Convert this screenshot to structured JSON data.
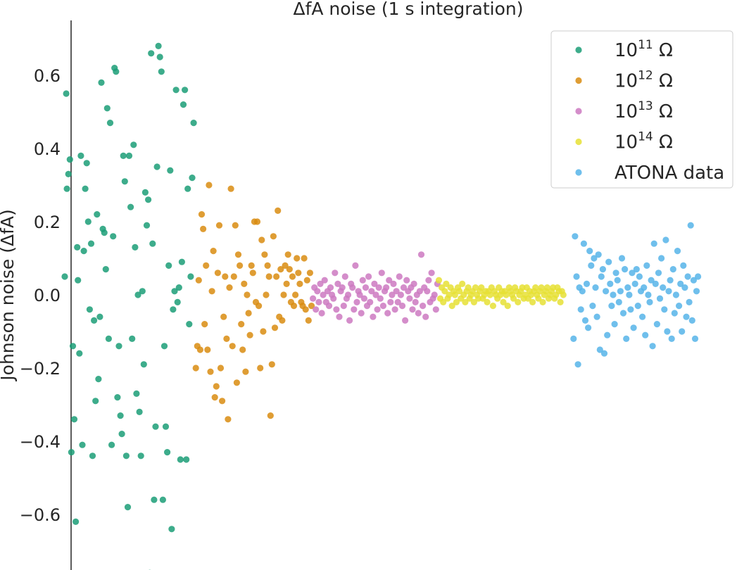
{
  "chart_data": {
    "type": "scatter",
    "title": "ΔfA noise (1 s integration)",
    "xlabel": "",
    "ylabel": "Johnson noise (ΔfA)",
    "ylim": [
      -0.75,
      0.75
    ],
    "yticks": [
      -0.6,
      -0.4,
      -0.2,
      0.0,
      0.2,
      0.4,
      0.6
    ],
    "ytick_labels": [
      "−0.6",
      "−0.4",
      "−0.2",
      "0.0",
      "0.2",
      "0.4",
      "0.6"
    ],
    "grid": false,
    "legend_position": "top-right",
    "series": [
      {
        "name": "10^11 Ω",
        "label_base": "10",
        "label_exp": "11",
        "label_unit": " Ω",
        "color": "#1b9e77",
        "x": [
          0.13,
          0.15,
          0.16,
          0.18,
          0.2,
          0.22,
          0.24,
          0.26,
          0.28,
          0.3,
          0.31,
          0.33,
          0.35,
          0.37,
          0.39,
          0.41,
          0.43,
          0.45,
          0.47,
          0.49,
          0.51,
          0.53,
          0.55,
          0.57,
          0.59,
          0.61,
          0.63,
          0.65,
          0.67,
          0.69,
          0.71,
          0.73,
          0.75,
          0.77,
          0.79,
          0.81,
          0.83,
          0.85,
          0.87,
          0.89,
          0.91,
          0.93,
          0.95,
          0.97,
          0.99,
          1.01,
          1.03,
          1.05,
          1.07,
          1.09,
          1.11,
          1.13,
          1.15,
          1.17,
          1.19,
          1.21,
          1.23,
          1.25,
          1.27,
          1.29,
          1.31,
          1.33,
          1.35,
          1.37,
          1.39,
          1.41,
          1.43,
          1.45,
          1.47,
          1.49,
          1.51,
          1.53,
          1.55,
          1.57,
          1.59,
          1.61,
          1.63,
          1.65,
          1.67,
          1.69,
          1.71,
          1.73,
          1.75,
          1.77,
          1.79,
          1.81,
          1.83,
          1.85,
          1.87,
          1.89
        ],
        "y": [
          0.05,
          0.55,
          0.29,
          0.33,
          0.37,
          -0.43,
          -0.14,
          -0.34,
          -0.62,
          0.13,
          0.04,
          -0.16,
          0.38,
          -0.41,
          0.12,
          0.29,
          0.36,
          0.2,
          -0.04,
          0.14,
          -0.44,
          -0.07,
          -0.29,
          0.22,
          -0.23,
          -0.06,
          0.58,
          0.18,
          0.17,
          0.07,
          0.51,
          -0.12,
          0.47,
          -0.41,
          0.16,
          0.62,
          0.61,
          -0.28,
          -0.14,
          -0.33,
          -0.38,
          0.38,
          0.31,
          -0.44,
          -0.58,
          0.38,
          0.24,
          -0.12,
          0.41,
          0.13,
          -0.27,
          0.0,
          -0.32,
          -0.44,
          0.01,
          -0.19,
          0.28,
          0.19,
          0.26,
          -0.76,
          0.66,
          0.14,
          -0.56,
          -0.36,
          0.35,
          0.68,
          0.65,
          0.61,
          -0.56,
          -0.14,
          -0.36,
          -0.43,
          0.08,
          0.34,
          -0.64,
          -0.04,
          0.01,
          0.56,
          -0.02,
          0.02,
          -0.45,
          0.09,
          0.52,
          0.56,
          -0.45,
          0.29,
          -0.08,
          0.05,
          0.32,
          0.47
        ]
      },
      {
        "name": "10^12 Ω",
        "label_base": "10",
        "label_exp": "12",
        "label_unit": " Ω",
        "color": "#d98c10",
        "x": [
          1.92,
          1.94,
          1.96,
          1.98,
          2.0,
          2.02,
          2.04,
          2.06,
          2.08,
          2.1,
          2.12,
          2.14,
          2.16,
          2.18,
          2.2,
          2.22,
          2.24,
          2.26,
          2.28,
          2.3,
          2.32,
          2.34,
          2.36,
          2.38,
          2.4,
          2.42,
          2.44,
          2.46,
          2.48,
          2.5,
          2.52,
          2.54,
          2.56,
          2.58,
          2.6,
          2.62,
          2.64,
          2.66,
          2.68,
          2.7,
          2.72,
          2.74,
          2.76,
          2.78,
          2.8,
          2.82,
          2.84,
          2.86,
          2.88,
          2.9,
          2.92,
          2.94,
          2.96,
          2.98,
          3.0,
          3.02,
          3.04,
          3.06,
          3.08,
          3.1,
          3.12,
          3.14,
          3.16,
          3.18,
          3.2,
          3.22,
          3.24,
          3.26,
          3.28,
          3.3,
          3.32,
          3.34,
          3.36,
          3.38,
          3.4,
          3.42,
          3.44,
          3.46,
          3.48,
          3.5
        ],
        "y": [
          -0.2,
          -0.14,
          0.04,
          -0.15,
          0.22,
          0.18,
          -0.08,
          0.08,
          -0.15,
          0.3,
          -0.21,
          0.01,
          0.12,
          -0.28,
          -0.25,
          0.06,
          0.19,
          -0.2,
          -0.29,
          -0.06,
          0.05,
          -0.12,
          -0.34,
          0.02,
          0.29,
          -0.14,
          0.05,
          0.19,
          -0.24,
          0.11,
          0.08,
          -0.08,
          -0.15,
          0.03,
          -0.21,
          0.0,
          -0.05,
          -0.11,
          0.08,
          0.06,
          0.2,
          -0.02,
          0.2,
          -0.03,
          -0.2,
          0.15,
          -0.1,
          0.11,
          0.0,
          0.08,
          0.05,
          -0.33,
          -0.19,
          0.16,
          -0.09,
          0.05,
          0.23,
          -0.06,
          0.07,
          -0.07,
          0.0,
          0.08,
          0.03,
          0.11,
          0.07,
          -0.02,
          0.05,
          -0.03,
          0.0,
          0.1,
          0.06,
          0.03,
          -0.02,
          -0.03,
          0.1,
          -0.04,
          0.04,
          -0.07,
          0.06,
          -0.03
        ]
      },
      {
        "name": "10^13 Ω",
        "label_base": "10",
        "label_exp": "13",
        "label_unit": " Ω",
        "color": "#cc79c1",
        "x": [
          3.52,
          3.54,
          3.56,
          3.58,
          3.6,
          3.62,
          3.64,
          3.66,
          3.68,
          3.7,
          3.72,
          3.74,
          3.76,
          3.78,
          3.8,
          3.82,
          3.84,
          3.86,
          3.88,
          3.9,
          3.92,
          3.94,
          3.96,
          3.98,
          4.0,
          4.02,
          4.04,
          4.06,
          4.08,
          4.1,
          4.12,
          4.14,
          4.16,
          4.18,
          4.2,
          4.22,
          4.24,
          4.26,
          4.28,
          4.3,
          4.32,
          4.34,
          4.36,
          4.38,
          4.4,
          4.42,
          4.44,
          4.46,
          4.48,
          4.5,
          4.52,
          4.54,
          4.56,
          4.58,
          4.6,
          4.62,
          4.64,
          4.66,
          4.68,
          4.7,
          4.72,
          4.74,
          4.76,
          4.78,
          4.8,
          4.82,
          4.84,
          4.86,
          4.88,
          4.9,
          4.92,
          4.94,
          4.96,
          4.98,
          5.0,
          5.02,
          5.04,
          5.06,
          5.08,
          5.1,
          5.12,
          5.14,
          5.16,
          5.18,
          5.2,
          5.22
        ],
        "y": [
          -0.01,
          0.02,
          -0.04,
          0.01,
          -0.02,
          0.03,
          -0.05,
          0.0,
          0.04,
          -0.02,
          0.01,
          -0.03,
          0.02,
          0.0,
          -0.01,
          0.06,
          -0.04,
          0.03,
          -0.06,
          0.01,
          0.02,
          -0.03,
          0.05,
          -0.01,
          0.0,
          -0.07,
          0.03,
          0.02,
          -0.04,
          0.08,
          -0.02,
          0.01,
          0.0,
          -0.05,
          0.04,
          -0.01,
          0.02,
          -0.03,
          0.05,
          -0.02,
          0.01,
          -0.06,
          0.03,
          0.0,
          -0.04,
          0.02,
          -0.01,
          0.06,
          -0.03,
          0.01,
          0.02,
          -0.05,
          0.04,
          -0.02,
          0.0,
          0.03,
          -0.04,
          0.01,
          -0.02,
          0.05,
          0.0,
          -0.03,
          0.02,
          -0.07,
          0.04,
          0.01,
          -0.01,
          0.02,
          -0.04,
          0.03,
          -0.02,
          0.0,
          -0.05,
          0.01,
          0.11,
          -0.03,
          0.02,
          -0.06,
          0.01,
          0.04,
          -0.02,
          0.06,
          -0.01,
          0.0,
          -0.04,
          0.03
        ]
      },
      {
        "name": "10^14 Ω",
        "label_base": "10",
        "label_exp": "14",
        "label_unit": " Ω",
        "color": "#e6e035",
        "x": [
          5.24,
          5.26,
          5.28,
          5.3,
          5.32,
          5.34,
          5.36,
          5.38,
          5.4,
          5.42,
          5.44,
          5.46,
          5.48,
          5.5,
          5.52,
          5.54,
          5.56,
          5.58,
          5.6,
          5.62,
          5.64,
          5.66,
          5.68,
          5.7,
          5.72,
          5.74,
          5.76,
          5.78,
          5.8,
          5.82,
          5.84,
          5.86,
          5.88,
          5.9,
          5.92,
          5.94,
          5.96,
          5.98,
          6.0,
          6.02,
          6.04,
          6.06,
          6.08,
          6.1,
          6.12,
          6.14,
          6.16,
          6.18,
          6.2,
          6.22,
          6.24,
          6.26,
          6.28,
          6.3,
          6.32,
          6.34,
          6.36,
          6.38,
          6.4,
          6.42,
          6.44,
          6.46,
          6.48,
          6.5,
          6.52,
          6.54,
          6.56,
          6.58,
          6.6,
          6.62,
          6.64,
          6.66,
          6.68,
          6.7,
          6.72,
          6.74,
          6.76,
          6.78,
          6.8,
          6.82,
          6.84,
          6.86,
          6.88,
          6.9,
          6.92,
          6.94
        ],
        "y": [
          0.04,
          -0.01,
          0.02,
          -0.02,
          0.01,
          0.03,
          -0.01,
          0.0,
          0.02,
          -0.03,
          0.01,
          0.0,
          -0.02,
          0.02,
          0.01,
          -0.01,
          0.03,
          0.0,
          -0.02,
          0.01,
          0.02,
          -0.01,
          0.0,
          0.01,
          -0.02,
          0.02,
          0.0,
          -0.01,
          0.01,
          0.02,
          -0.01,
          0.0,
          0.01,
          -0.02,
          0.01,
          0.0,
          0.02,
          -0.03,
          0.01,
          0.0,
          -0.01,
          0.02,
          0.0,
          0.01,
          -0.02,
          0.01,
          0.0,
          -0.03,
          0.02,
          0.01,
          0.0,
          -0.01,
          0.02,
          0.01,
          -0.02,
          0.0,
          0.01,
          0.02,
          -0.01,
          0.0,
          0.02,
          -0.01,
          0.01,
          0.0,
          -0.02,
          0.01,
          0.02,
          0.0,
          -0.01,
          0.01,
          0.02,
          -0.02,
          0.0,
          0.01,
          0.02,
          -0.01,
          0.0,
          0.01,
          0.02,
          -0.01,
          0.0,
          0.02,
          0.01,
          -0.02,
          0.01,
          0.0
        ]
      },
      {
        "name": "ATONA data",
        "label_base": "ATONA data",
        "label_exp": "",
        "label_unit": "",
        "color": "#56b4e9",
        "x": [
          7.08,
          7.1,
          7.12,
          7.14,
          7.16,
          7.18,
          7.2,
          7.22,
          7.24,
          7.26,
          7.28,
          7.3,
          7.32,
          7.34,
          7.36,
          7.38,
          7.4,
          7.42,
          7.44,
          7.46,
          7.48,
          7.5,
          7.52,
          7.54,
          7.56,
          7.58,
          7.6,
          7.62,
          7.64,
          7.66,
          7.68,
          7.7,
          7.72,
          7.74,
          7.76,
          7.78,
          7.8,
          7.82,
          7.84,
          7.86,
          7.88,
          7.9,
          7.92,
          7.94,
          7.96,
          7.98,
          8.0,
          8.02,
          8.04,
          8.06,
          8.08,
          8.1,
          8.12,
          8.14,
          8.16,
          8.18,
          8.2,
          8.22,
          8.24,
          8.26,
          8.28,
          8.3,
          8.32,
          8.34,
          8.36,
          8.38,
          8.4,
          8.42,
          8.44,
          8.46,
          8.48,
          8.5,
          8.52,
          8.54,
          8.56,
          8.58,
          8.6,
          8.62,
          8.64,
          8.66,
          8.68,
          8.7,
          8.72,
          8.74,
          8.76,
          8.78
        ],
        "y": [
          -0.12,
          0.16,
          0.05,
          -0.19,
          0.02,
          -0.04,
          0.01,
          0.14,
          -0.07,
          0.03,
          -0.09,
          0.12,
          0.08,
          -0.03,
          0.1,
          0.02,
          -0.06,
          0.11,
          -0.15,
          0.05,
          0.07,
          -0.16,
          0.01,
          -0.11,
          0.09,
          0.03,
          -0.03,
          0.0,
          -0.08,
          0.06,
          0.04,
          -0.02,
          0.01,
          0.1,
          -0.05,
          0.07,
          -0.12,
          0.02,
          0.0,
          -0.04,
          0.06,
          -0.09,
          0.03,
          0.07,
          -0.03,
          0.05,
          0.01,
          -0.06,
          0.02,
          -0.11,
          0.08,
          0.0,
          -0.02,
          0.04,
          -0.14,
          0.14,
          0.03,
          -0.08,
          0.06,
          -0.01,
          0.1,
          0.02,
          -0.04,
          0.15,
          -0.1,
          0.01,
          0.04,
          -0.12,
          0.07,
          -0.05,
          0.0,
          0.12,
          -0.03,
          0.03,
          -0.1,
          0.08,
          0.02,
          -0.06,
          0.05,
          -0.02,
          0.19,
          -0.07,
          0.04,
          -0.12,
          0.01,
          0.05
        ]
      }
    ]
  }
}
